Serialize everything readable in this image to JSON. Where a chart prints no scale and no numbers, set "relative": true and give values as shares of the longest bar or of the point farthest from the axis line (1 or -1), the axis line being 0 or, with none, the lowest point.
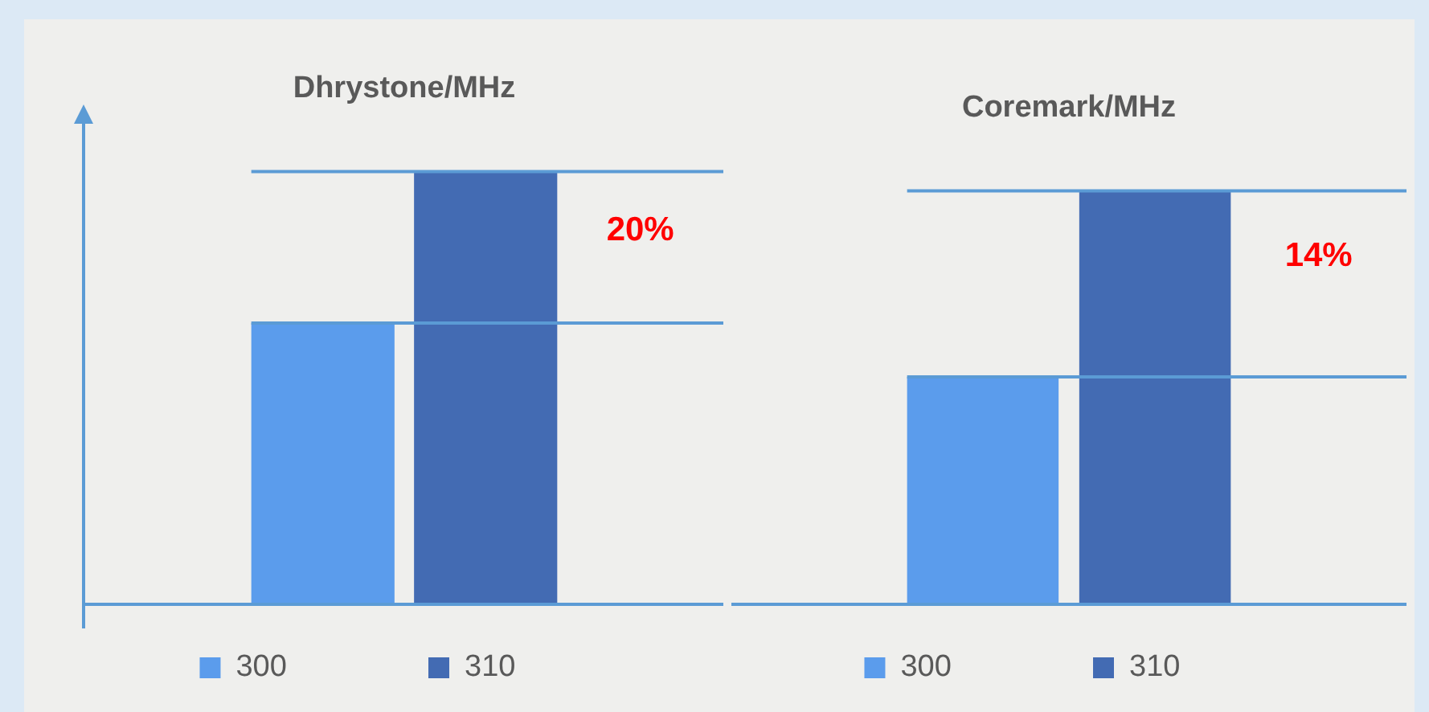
{
  "chart_data": [
    {
      "type": "bar",
      "title": "Dhrystone/MHz",
      "relative": true,
      "categories": [
        null
      ],
      "legend": "bottom",
      "series": [
        {
          "name": "300",
          "color": "#5b9cec",
          "values": [
            0.65
          ]
        },
        {
          "name": "310",
          "color": "#436bb3",
          "values": [
            1
          ]
        }
      ],
      "ref_lines": [
        {
          "axis": "y",
          "value": 1,
          "color": "#5b9bd5"
        },
        {
          "axis": "y",
          "value": 0.65,
          "color": "#5b9bd5"
        }
      ],
      "annotations": [
        "20%"
      ]
    },
    {
      "type": "bar",
      "title": "Coremark/MHz",
      "relative": true,
      "categories": [
        null
      ],
      "legend": "bottom",
      "series": [
        {
          "name": "300",
          "color": "#5b9cec",
          "values": [
            0.55
          ]
        },
        {
          "name": "310",
          "color": "#436bb3",
          "values": [
            1
          ]
        }
      ],
      "ref_lines": [
        {
          "axis": "y",
          "value": 1,
          "color": "#5b9bd5"
        },
        {
          "axis": "y",
          "value": 0.55,
          "color": "#5b9bd5"
        }
      ],
      "annotations": [
        "14%"
      ]
    }
  ]
}
